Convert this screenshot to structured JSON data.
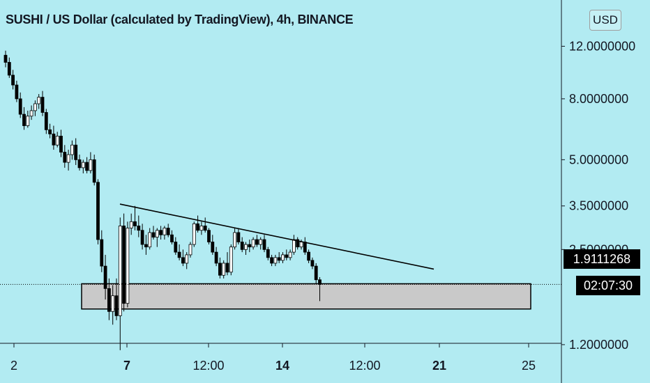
{
  "header": {
    "title": "SUSHI / US Dollar (calculated by TradingView), 4h, BINANCE"
  },
  "price_axis": {
    "currency_label": "USD",
    "last_price_label": "1.9111268",
    "countdown_label": "02:07:30"
  },
  "colors": {
    "background": "#b2ebf2",
    "candle_up": "#ffffff",
    "candle_down": "#000000",
    "wick": "#000000",
    "trendline": "#000000",
    "zone_fill": "#c9c9c9",
    "axis_line": "#131722"
  },
  "chart_data": {
    "type": "candlestick",
    "title": "SUSHI / US Dollar (calculated by TradingView), 4h, BINANCE",
    "y_scale": "log",
    "y_ticks": [
      "12.0000000",
      "8.0000000",
      "5.0000000",
      "3.5000000",
      "2.5000000",
      "1.2000000"
    ],
    "x_ticks": [
      {
        "label": "2",
        "bold": false
      },
      {
        "label": "7",
        "bold": true
      },
      {
        "label": "12:00",
        "bold": false
      },
      {
        "label": "14",
        "bold": true
      },
      {
        "label": "12:00",
        "bold": false
      },
      {
        "label": "21",
        "bold": true
      },
      {
        "label": "25",
        "bold": false
      }
    ],
    "last_price": 1.9111268,
    "candles": [
      [
        11.2,
        11.6,
        10.2,
        10.6
      ],
      [
        10.6,
        11.0,
        9.4,
        9.6
      ],
      [
        9.6,
        10.0,
        8.6,
        8.9
      ],
      [
        8.9,
        9.2,
        7.8,
        8.0
      ],
      [
        8.0,
        8.4,
        6.9,
        7.1
      ],
      [
        7.1,
        7.5,
        6.3,
        6.5
      ],
      [
        6.5,
        7.3,
        6.4,
        7.0
      ],
      [
        7.0,
        7.6,
        6.8,
        7.3
      ],
      [
        7.3,
        7.9,
        7.0,
        7.7
      ],
      [
        7.7,
        8.3,
        7.4,
        8.1
      ],
      [
        8.1,
        8.5,
        7.0,
        7.2
      ],
      [
        7.2,
        7.4,
        6.1,
        6.3
      ],
      [
        6.3,
        6.6,
        5.9,
        6.1
      ],
      [
        6.1,
        6.5,
        5.4,
        5.6
      ],
      [
        5.6,
        6.2,
        5.5,
        6.0
      ],
      [
        6.0,
        6.3,
        5.1,
        5.3
      ],
      [
        5.3,
        5.6,
        4.7,
        4.9
      ],
      [
        4.9,
        5.4,
        4.6,
        5.2
      ],
      [
        5.2,
        5.8,
        5.0,
        5.6
      ],
      [
        5.6,
        5.9,
        4.8,
        5.0
      ],
      [
        5.0,
        5.2,
        4.6,
        4.7
      ],
      [
        4.7,
        5.0,
        4.5,
        4.9
      ],
      [
        4.9,
        5.1,
        4.5,
        4.6
      ],
      [
        4.6,
        5.3,
        4.5,
        5.0
      ],
      [
        5.0,
        5.2,
        4.1,
        4.2
      ],
      [
        4.2,
        4.3,
        2.6,
        2.7
      ],
      [
        2.7,
        2.9,
        2.1,
        2.2
      ],
      [
        2.2,
        2.4,
        1.7,
        1.85
      ],
      [
        1.85,
        2.0,
        1.45,
        1.55
      ],
      [
        1.55,
        1.9,
        1.4,
        1.75
      ],
      [
        1.75,
        2.0,
        1.45,
        1.5
      ],
      [
        1.5,
        3.2,
        1.15,
        3.0
      ],
      [
        3.0,
        3.3,
        1.55,
        1.65
      ],
      [
        1.65,
        3.1,
        1.6,
        2.95
      ],
      [
        2.95,
        3.3,
        2.8,
        3.1
      ],
      [
        3.1,
        3.5,
        2.9,
        3.0
      ],
      [
        3.0,
        3.25,
        2.75,
        2.9
      ],
      [
        2.9,
        3.05,
        2.5,
        2.6
      ],
      [
        2.6,
        2.8,
        2.4,
        2.55
      ],
      [
        2.55,
        2.95,
        2.5,
        2.85
      ],
      [
        2.85,
        3.0,
        2.7,
        2.75
      ],
      [
        2.75,
        2.95,
        2.55,
        2.9
      ],
      [
        2.9,
        3.0,
        2.7,
        2.8
      ],
      [
        2.8,
        3.0,
        2.7,
        2.95
      ],
      [
        2.95,
        3.05,
        2.75,
        2.8
      ],
      [
        2.8,
        2.9,
        2.6,
        2.65
      ],
      [
        2.65,
        2.75,
        2.4,
        2.45
      ],
      [
        2.45,
        2.6,
        2.3,
        2.35
      ],
      [
        2.35,
        2.5,
        2.2,
        2.25
      ],
      [
        2.25,
        2.45,
        2.15,
        2.4
      ],
      [
        2.4,
        2.65,
        2.35,
        2.6
      ],
      [
        2.6,
        3.1,
        2.55,
        3.05
      ],
      [
        3.05,
        3.25,
        2.85,
        2.9
      ],
      [
        2.9,
        3.1,
        2.8,
        3.0
      ],
      [
        3.0,
        3.2,
        2.85,
        2.9
      ],
      [
        2.9,
        2.95,
        2.6,
        2.65
      ],
      [
        2.65,
        2.8,
        2.4,
        2.45
      ],
      [
        2.45,
        2.55,
        2.2,
        2.25
      ],
      [
        2.25,
        2.35,
        2.0,
        2.05
      ],
      [
        2.05,
        2.3,
        2.0,
        2.25
      ],
      [
        2.25,
        2.45,
        2.05,
        2.1
      ],
      [
        2.1,
        2.6,
        2.05,
        2.55
      ],
      [
        2.55,
        2.95,
        2.5,
        2.85
      ],
      [
        2.85,
        2.95,
        2.6,
        2.65
      ],
      [
        2.65,
        2.75,
        2.45,
        2.5
      ],
      [
        2.5,
        2.65,
        2.4,
        2.6
      ],
      [
        2.6,
        2.7,
        2.45,
        2.55
      ],
      [
        2.55,
        2.75,
        2.5,
        2.7
      ],
      [
        2.7,
        2.8,
        2.55,
        2.6
      ],
      [
        2.6,
        2.75,
        2.5,
        2.7
      ],
      [
        2.7,
        2.8,
        2.45,
        2.5
      ],
      [
        2.5,
        2.55,
        2.3,
        2.35
      ],
      [
        2.35,
        2.4,
        2.2,
        2.25
      ],
      [
        2.25,
        2.4,
        2.2,
        2.35
      ],
      [
        2.35,
        2.45,
        2.25,
        2.3
      ],
      [
        2.3,
        2.45,
        2.25,
        2.4
      ],
      [
        2.4,
        2.5,
        2.3,
        2.35
      ],
      [
        2.35,
        2.5,
        2.3,
        2.45
      ],
      [
        2.45,
        2.8,
        2.4,
        2.7
      ],
      [
        2.7,
        2.75,
        2.5,
        2.55
      ],
      [
        2.55,
        2.7,
        2.5,
        2.65
      ],
      [
        2.65,
        2.75,
        2.4,
        2.45
      ],
      [
        2.45,
        2.5,
        2.25,
        2.3
      ],
      [
        2.3,
        2.35,
        2.15,
        2.2
      ],
      [
        2.2,
        2.25,
        1.92,
        1.98
      ],
      [
        1.98,
        2.02,
        1.68,
        1.91
      ]
    ],
    "trendline": {
      "start_price": 3.55,
      "end_price": 2.15
    },
    "support_zone": {
      "top": 1.92,
      "bottom": 1.58
    }
  }
}
